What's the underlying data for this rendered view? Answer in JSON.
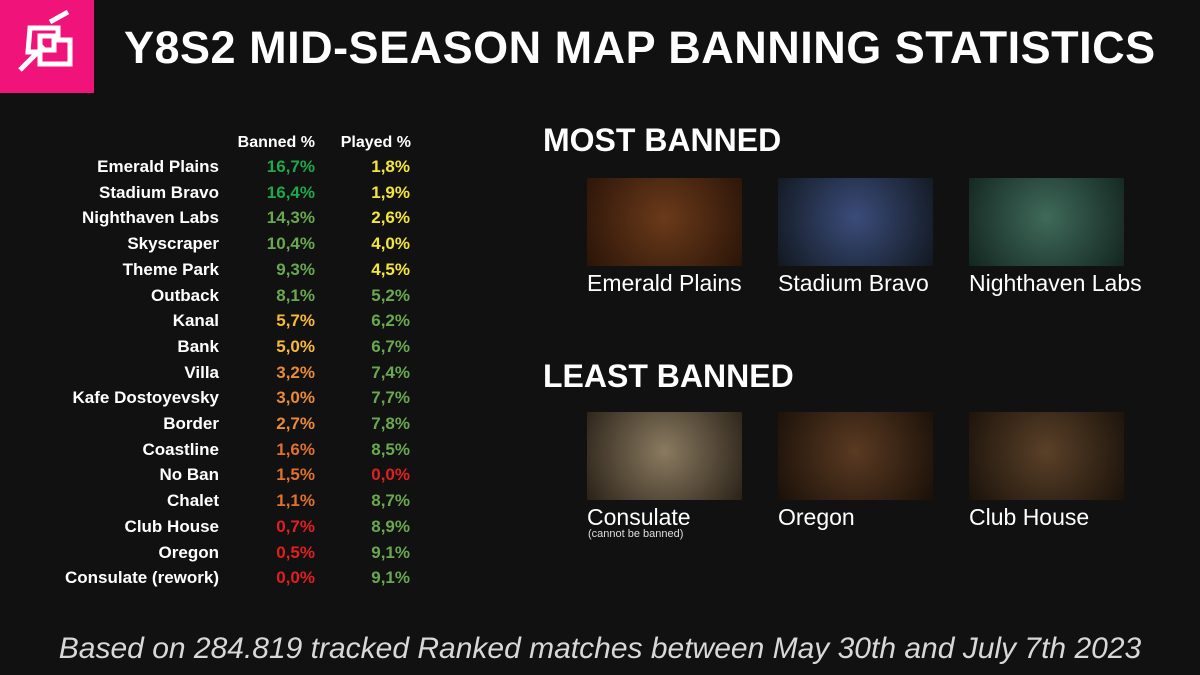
{
  "header": {
    "title": "Y8S2 MID-SEASON MAP BANNING STATISTICS"
  },
  "table": {
    "headers": [
      "Banned %",
      "Played %"
    ],
    "rows": [
      [
        "Emerald Plains",
        "16,7%",
        "1,8%"
      ],
      [
        "Stadium Bravo",
        "16,4%",
        "1,9%"
      ],
      [
        "Nighthaven Labs",
        "14,3%",
        "2,6%"
      ],
      [
        "Skyscraper",
        "10,4%",
        "4,0%"
      ],
      [
        "Theme Park",
        "9,3%",
        "4,5%"
      ],
      [
        "Outback",
        "8,1%",
        "5,2%"
      ],
      [
        "Kanal",
        "5,7%",
        "6,2%"
      ],
      [
        "Bank",
        "5,0%",
        "6,7%"
      ],
      [
        "Villa",
        "3,2%",
        "7,4%"
      ],
      [
        "Kafe Dostoyevsky",
        "3,0%",
        "7,7%"
      ],
      [
        "Border",
        "2,7%",
        "7,8%"
      ],
      [
        "Coastline",
        "1,6%",
        "8,5%"
      ],
      [
        "No Ban",
        "1,5%",
        "0,0%"
      ],
      [
        "Chalet",
        "1,1%",
        "8,7%"
      ],
      [
        "Club House",
        "0,7%",
        "8,9%"
      ],
      [
        "Oregon",
        "0,5%",
        "9,1%"
      ],
      [
        "Consulate (rework)",
        "0,0%",
        "9,1%"
      ]
    ],
    "cell_colors": [
      [
        "#1fa84a",
        "#f3e63a"
      ],
      [
        "#1fa84a",
        "#f3e63a"
      ],
      [
        "#6aa84f",
        "#f3e63a"
      ],
      [
        "#6aa84f",
        "#f3e63a"
      ],
      [
        "#6aa84f",
        "#f3e63a"
      ],
      [
        "#6aa84f",
        "#6aa84f"
      ],
      [
        "#f6b93b",
        "#6aa84f"
      ],
      [
        "#f6b93b",
        "#6aa84f"
      ],
      [
        "#e98a3a",
        "#6aa84f"
      ],
      [
        "#e98a3a",
        "#6aa84f"
      ],
      [
        "#e98a3a",
        "#6aa84f"
      ],
      [
        "#e0702f",
        "#6aa84f"
      ],
      [
        "#e0702f",
        "#e02020"
      ],
      [
        "#e0702f",
        "#6aa84f"
      ],
      [
        "#e02020",
        "#6aa84f"
      ],
      [
        "#e02020",
        "#6aa84f"
      ],
      [
        "#e02020",
        "#6aa84f"
      ]
    ]
  },
  "most_banned": {
    "title": "MOST BANNED",
    "maps": [
      "Emerald Plains",
      "Stadium Bravo",
      "Nighthaven Labs"
    ]
  },
  "least_banned": {
    "title": "LEAST BANNED",
    "maps": [
      "Consulate",
      "Oregon",
      "Club House"
    ],
    "note": "(cannot be banned)"
  },
  "footer": "Based on 284.819 tracked Ranked matches between May 30th and July 7th 2023"
}
